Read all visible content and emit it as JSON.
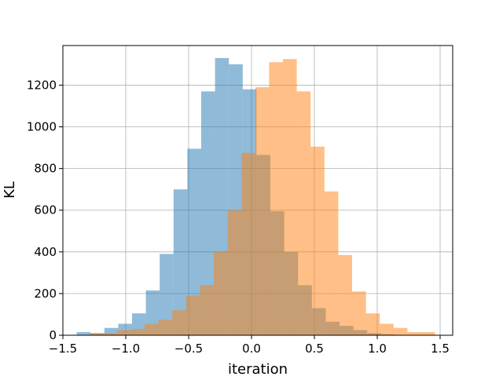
{
  "chart_data": {
    "type": "bar",
    "subtype": "overlapping-histogram",
    "title": "",
    "xlabel": "iteration",
    "ylabel": "KL",
    "xlim": [
      -1.5,
      1.6
    ],
    "ylim": [
      0,
      1390
    ],
    "xticks": [
      -1.5,
      -1.0,
      -0.5,
      0.0,
      0.5,
      1.0,
      1.5
    ],
    "xtick_labels": [
      "−1.5",
      "−1.0",
      "−0.5",
      "0.0",
      "0.5",
      "1.0",
      "1.5"
    ],
    "yticks": [
      0,
      200,
      400,
      600,
      800,
      1000,
      1200
    ],
    "ytick_labels": [
      "0",
      "200",
      "400",
      "600",
      "800",
      "1000",
      "1200"
    ],
    "grid": true,
    "legend": false,
    "series": [
      {
        "color": "#1f77b4",
        "opacity": 0.5,
        "bin_width": 0.11,
        "bins": [
          {
            "x0": -1.39,
            "count": 15
          },
          {
            "x0": -1.28,
            "count": 10
          },
          {
            "x0": -1.17,
            "count": 35
          },
          {
            "x0": -1.06,
            "count": 55
          },
          {
            "x0": -0.95,
            "count": 105
          },
          {
            "x0": -0.84,
            "count": 215
          },
          {
            "x0": -0.73,
            "count": 390
          },
          {
            "x0": -0.62,
            "count": 700
          },
          {
            "x0": -0.51,
            "count": 895
          },
          {
            "x0": -0.4,
            "count": 1170
          },
          {
            "x0": -0.29,
            "count": 1330
          },
          {
            "x0": -0.18,
            "count": 1300
          },
          {
            "x0": -0.07,
            "count": 1180
          },
          {
            "x0": 0.04,
            "count": 865
          },
          {
            "x0": 0.15,
            "count": 595
          },
          {
            "x0": 0.26,
            "count": 400
          },
          {
            "x0": 0.37,
            "count": 240
          },
          {
            "x0": 0.48,
            "count": 130
          },
          {
            "x0": 0.59,
            "count": 65
          },
          {
            "x0": 0.7,
            "count": 45
          },
          {
            "x0": 0.81,
            "count": 25
          },
          {
            "x0": 0.92,
            "count": 10
          },
          {
            "x0": 1.03,
            "count": 5
          }
        ]
      },
      {
        "color": "#ff7f0e",
        "opacity": 0.5,
        "bin_width": 0.11,
        "bins": [
          {
            "x0": -1.29,
            "count": 10
          },
          {
            "x0": -1.18,
            "count": 10
          },
          {
            "x0": -1.07,
            "count": 25
          },
          {
            "x0": -0.96,
            "count": 30
          },
          {
            "x0": -0.85,
            "count": 55
          },
          {
            "x0": -0.74,
            "count": 75
          },
          {
            "x0": -0.63,
            "count": 120
          },
          {
            "x0": -0.52,
            "count": 190
          },
          {
            "x0": -0.41,
            "count": 240
          },
          {
            "x0": -0.3,
            "count": 400
          },
          {
            "x0": -0.19,
            "count": 600
          },
          {
            "x0": -0.08,
            "count": 875
          },
          {
            "x0": 0.03,
            "count": 1190
          },
          {
            "x0": 0.14,
            "count": 1310
          },
          {
            "x0": 0.25,
            "count": 1325
          },
          {
            "x0": 0.36,
            "count": 1170
          },
          {
            "x0": 0.47,
            "count": 905
          },
          {
            "x0": 0.58,
            "count": 690
          },
          {
            "x0": 0.69,
            "count": 385
          },
          {
            "x0": 0.8,
            "count": 210
          },
          {
            "x0": 0.91,
            "count": 105
          },
          {
            "x0": 1.02,
            "count": 55
          },
          {
            "x0": 1.13,
            "count": 35
          },
          {
            "x0": 1.24,
            "count": 15
          },
          {
            "x0": 1.35,
            "count": 15
          }
        ]
      }
    ]
  }
}
